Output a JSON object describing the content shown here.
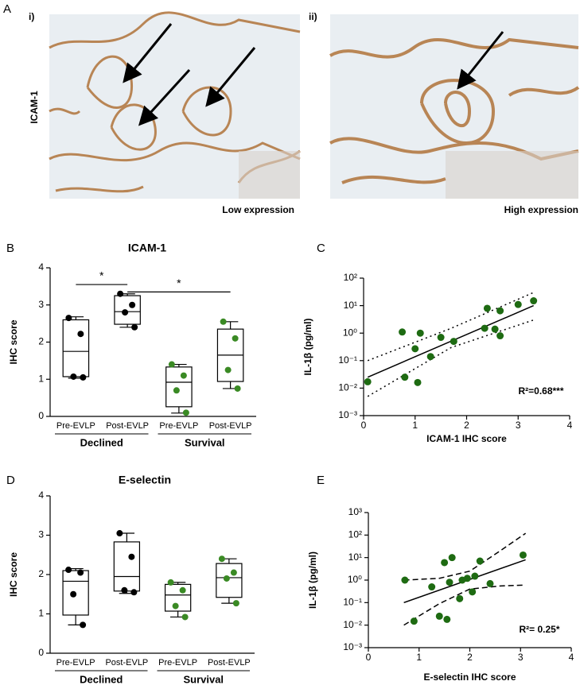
{
  "figure_a": {
    "panel": "A",
    "row_label": "ICAM-1",
    "images": [
      {
        "label": "i)",
        "caption": "Low expression"
      },
      {
        "label": "ii)",
        "caption": "High expression"
      }
    ]
  },
  "chart_data": [
    {
      "type": "box",
      "panel": "B",
      "title": "ICAM-1",
      "ylabel": "IHC score",
      "categories": [
        "Pre-EVLP",
        "Post-EVLP",
        "Pre-EVLP",
        "Post-EVLP"
      ],
      "groups": [
        "Declined",
        "Survival"
      ],
      "ylim": [
        0,
        4
      ],
      "yticks": [
        0,
        1,
        2,
        3,
        4
      ],
      "annotations": [
        {
          "label": "*"
        },
        {
          "label": "*"
        }
      ],
      "boxes": [
        {
          "color": "#000000",
          "min": 1.03,
          "q1": 1.07,
          "median": 1.75,
          "q3": 2.6,
          "max": 2.68,
          "points": [
            2.65,
            2.22,
            1.07,
            1.05
          ]
        },
        {
          "color": "#000000",
          "min": 2.4,
          "q1": 2.48,
          "median": 2.82,
          "q3": 3.25,
          "max": 3.3,
          "points": [
            3.3,
            3.0,
            2.8,
            2.4
          ]
        },
        {
          "color": "#3a8a24",
          "min": 0.09,
          "q1": 0.26,
          "median": 0.92,
          "q3": 1.33,
          "max": 1.4,
          "points": [
            1.4,
            1.1,
            0.7,
            0.1
          ]
        },
        {
          "color": "#3a8a24",
          "min": 0.75,
          "q1": 0.94,
          "median": 1.65,
          "q3": 2.35,
          "max": 2.55,
          "points": [
            2.55,
            2.1,
            1.25,
            0.75
          ]
        }
      ]
    },
    {
      "type": "scatter",
      "panel": "C",
      "ylabel": "IL-1β (pg/ml)",
      "xlabel": "ICAM-1 IHC score",
      "annotation": "R²=0.68***",
      "log_y": true,
      "xlim": [
        0,
        4
      ],
      "xticks": [
        0,
        1,
        2,
        3,
        4
      ],
      "ylim": [
        0.001,
        100
      ],
      "yticks": [
        {
          "value": 0.001,
          "label": "10⁻³"
        },
        {
          "value": 0.01,
          "label": "10⁻²"
        },
        {
          "value": 0.1,
          "label": "10⁻¹"
        },
        {
          "value": 1,
          "label": "10⁰"
        },
        {
          "value": 10,
          "label": "10¹"
        },
        {
          "value": 100,
          "label": "10²"
        }
      ],
      "series": [
        {
          "color": "#1e6b12",
          "x": [
            0.08,
            0.75,
            0.8,
            1.0,
            1.05,
            1.1,
            1.3,
            1.5,
            1.75,
            2.35,
            2.4,
            2.55,
            2.65,
            2.65,
            3.0,
            3.3
          ],
          "values": [
            0.017,
            1.1,
            0.025,
            0.27,
            0.016,
            1.0,
            0.14,
            0.7,
            0.5,
            1.5,
            8,
            1.4,
            0.8,
            6.5,
            11,
            15
          ]
        }
      ],
      "lines": [
        {
          "style": "solid",
          "x": [
            0.08,
            3.3
          ],
          "values": [
            0.025,
            10
          ]
        },
        {
          "style": "dotted",
          "x": [
            0.08,
            1.7,
            3.3
          ],
          "values": [
            0.1,
            1.5,
            30
          ]
        },
        {
          "style": "dotted",
          "x": [
            0.08,
            1.7,
            3.3
          ],
          "values": [
            0.005,
            0.3,
            3
          ]
        }
      ]
    },
    {
      "type": "box",
      "panel": "D",
      "title": "E-selectin",
      "ylabel": "IHC score",
      "categories": [
        "Pre-EVLP",
        "Post-EVLP",
        "Pre-EVLP",
        "Post-EVLP"
      ],
      "groups": [
        "Declined",
        "Survival"
      ],
      "ylim": [
        0,
        4
      ],
      "yticks": [
        0,
        1,
        2,
        3,
        4
      ],
      "boxes": [
        {
          "color": "#000000",
          "min": 0.72,
          "q1": 0.97,
          "median": 1.83,
          "q3": 2.1,
          "max": 2.15,
          "points": [
            2.12,
            2.05,
            1.5,
            0.72
          ]
        },
        {
          "color": "#000000",
          "min": 1.52,
          "q1": 1.58,
          "median": 1.95,
          "q3": 2.83,
          "max": 3.05,
          "points": [
            3.05,
            2.45,
            1.6,
            1.55
          ]
        },
        {
          "color": "#3a8a24",
          "min": 0.92,
          "q1": 1.07,
          "median": 1.48,
          "q3": 1.75,
          "max": 1.8,
          "points": [
            1.8,
            1.6,
            1.2,
            0.92
          ]
        },
        {
          "color": "#3a8a24",
          "min": 1.27,
          "q1": 1.42,
          "median": 1.92,
          "q3": 2.28,
          "max": 2.4,
          "points": [
            2.4,
            2.05,
            1.9,
            1.27
          ]
        }
      ]
    },
    {
      "type": "scatter",
      "panel": "E",
      "ylabel": "IL-1β (pg/ml)",
      "xlabel": "E-selectin IHC score",
      "annotation": "R²= 0.25*",
      "log_y": true,
      "xlim": [
        0,
        4
      ],
      "xticks": [
        0,
        1,
        2,
        3,
        4
      ],
      "ylim": [
        0.001,
        1000
      ],
      "yticks": [
        {
          "value": 0.001,
          "label": "10⁻³"
        },
        {
          "value": 0.01,
          "label": "10⁻²"
        },
        {
          "value": 0.1,
          "label": "10⁻¹"
        },
        {
          "value": 1,
          "label": "10⁰"
        },
        {
          "value": 10,
          "label": "10¹"
        },
        {
          "value": 100,
          "label": "10²"
        },
        {
          "value": 1000,
          "label": "10³"
        }
      ],
      "series": [
        {
          "color": "#1e6b12",
          "x": [
            0.72,
            0.9,
            1.25,
            1.4,
            1.5,
            1.55,
            1.6,
            1.65,
            1.8,
            1.85,
            1.95,
            2.05,
            2.1,
            2.2,
            2.4,
            3.05
          ],
          "values": [
            1.0,
            0.015,
            0.5,
            0.025,
            6,
            0.018,
            0.8,
            10,
            0.15,
            1.0,
            1.2,
            0.3,
            1.5,
            7,
            0.7,
            13
          ]
        }
      ],
      "lines": [
        {
          "style": "solid",
          "x": [
            0.7,
            3.1
          ],
          "values": [
            0.1,
            8
          ]
        },
        {
          "style": "dashed",
          "x": [
            0.7,
            1.4,
            2.0,
            2.6,
            3.1
          ],
          "values": [
            1.0,
            1.2,
            2.5,
            20,
            120
          ]
        },
        {
          "style": "dashed",
          "x": [
            0.7,
            1.4,
            2.0,
            2.6,
            3.1
          ],
          "values": [
            0.01,
            0.09,
            0.4,
            0.55,
            0.6
          ]
        }
      ]
    }
  ]
}
